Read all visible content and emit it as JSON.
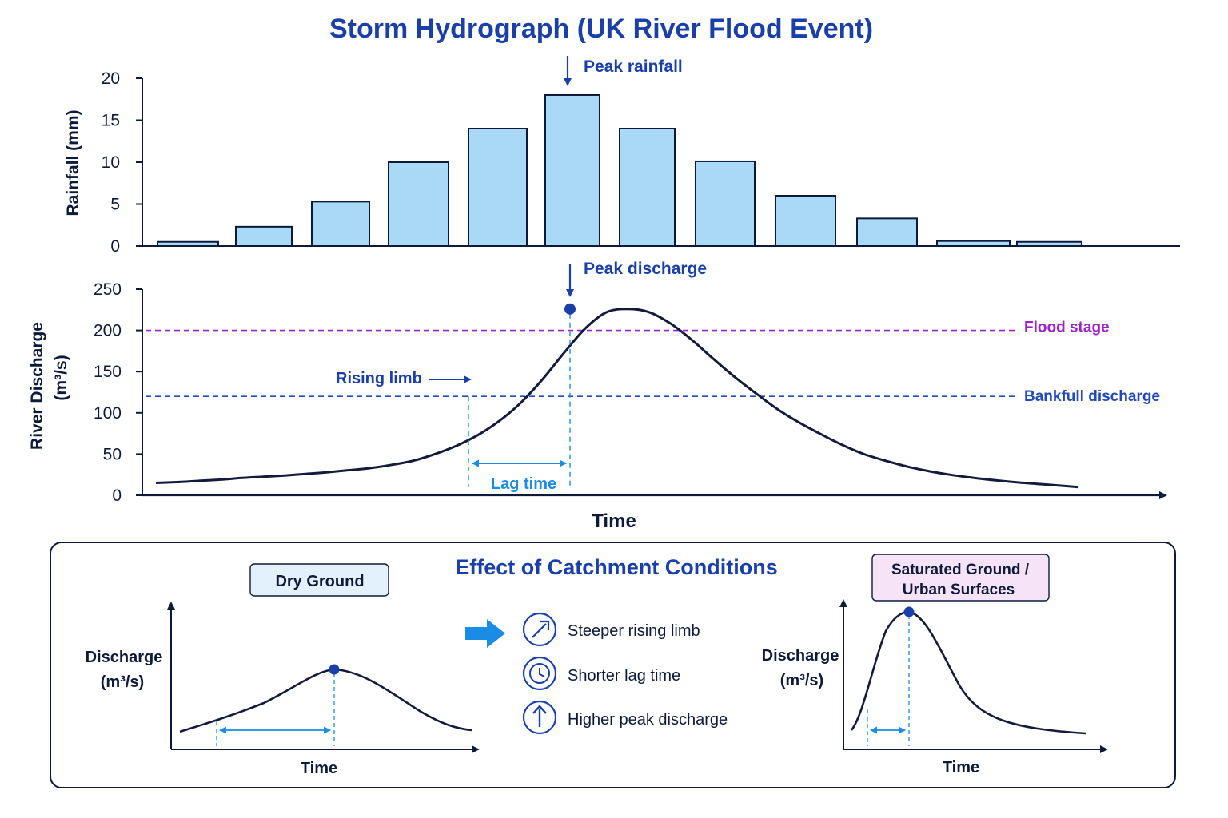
{
  "title": "Storm Hydrograph (UK River Flood Event)",
  "colors": {
    "title": "#1a3fa8",
    "bar_fill": "#aad8f7",
    "bar_stroke": "#0d1a3a",
    "axis": "#0d1a3a",
    "curve": "#141a3c",
    "annotation_blue": "#1a3fa8",
    "accent": "#1a8ce6",
    "flood_stage": "#9a22c8",
    "bankfull": "#2349b8",
    "peak_dot": "#1a3fa8",
    "dry_tag_bg": "#e3f1fc",
    "wet_tag_bg": "#f6e3f8"
  },
  "chart_data": [
    {
      "type": "bar",
      "ylabel": "Rainfall (mm)",
      "ylim": [
        0,
        20
      ],
      "yticks": [
        0,
        5,
        10,
        15,
        20
      ],
      "values": [
        0.5,
        2.3,
        5.3,
        10,
        14,
        18,
        14,
        10.1,
        6,
        3.3,
        0.6,
        0.5
      ],
      "annotations": {
        "peak_rainfall": "Peak rainfall"
      }
    },
    {
      "type": "line",
      "ylabel_line1": "River Discharge",
      "ylabel_line2": "(m³/s)",
      "xlabel": "Time",
      "ylim": [
        0,
        250
      ],
      "yticks": [
        0,
        50,
        100,
        150,
        200,
        250
      ],
      "series": [
        {
          "values": [
            15,
            16,
            17.5,
            19,
            21,
            22.5,
            24,
            26,
            28,
            30.5,
            33,
            37,
            42,
            50,
            60,
            73,
            90,
            112,
            140,
            172,
            202,
            222,
            226,
            222,
            208,
            188,
            165,
            143,
            123,
            104,
            88,
            74,
            61,
            50,
            42,
            35,
            29.5,
            25,
            21.5,
            18.5,
            16,
            14,
            12,
            10
          ]
        }
      ],
      "peak_value": 226,
      "reference_lines": [
        {
          "label": "Flood stage",
          "value": 200
        },
        {
          "label": "Bankfull discharge",
          "value": 120
        }
      ],
      "annotations": {
        "peak_discharge": "Peak discharge",
        "rising_limb": "Rising limb",
        "lag_time": "Lag time"
      }
    }
  ],
  "panel": {
    "title": "Effect of Catchment Conditions",
    "dry": {
      "tag": "Dry Ground",
      "ylabel_line1": "Discharge",
      "ylabel_line2": "(m³/s)",
      "xlabel": "Time"
    },
    "wet": {
      "tag_line1": "Saturated Ground /",
      "tag_line2": "Urban Surfaces",
      "ylabel_line1": "Discharge",
      "ylabel_line2": "(m³/s)",
      "xlabel": "Time"
    },
    "effects": [
      {
        "icon": "arrow-up-right-icon",
        "label": "Steeper rising limb"
      },
      {
        "icon": "clock-icon",
        "label": "Shorter lag time"
      },
      {
        "icon": "arrow-up-icon",
        "label": "Higher peak discharge"
      }
    ]
  }
}
